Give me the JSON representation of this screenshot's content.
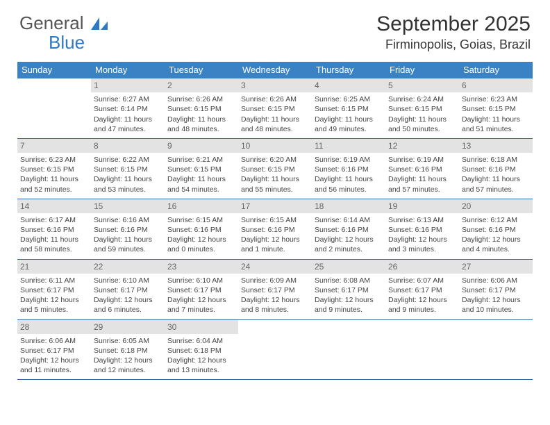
{
  "logo": {
    "word1": "General",
    "word2": "Blue"
  },
  "title": "September 2025",
  "location": "Firminopolis, Goias, Brazil",
  "colors": {
    "header_bg": "#3a82c4",
    "header_text": "#ffffff",
    "daynum_bg": "#e3e3e3",
    "daynum_text": "#666666",
    "body_text": "#444444",
    "rule": "#2f6aa8",
    "logo_blue": "#2f79c2"
  },
  "days_of_week": [
    "Sunday",
    "Monday",
    "Tuesday",
    "Wednesday",
    "Thursday",
    "Friday",
    "Saturday"
  ],
  "weeks": [
    [
      {
        "n": "",
        "sr": "",
        "ss": "",
        "dl": ""
      },
      {
        "n": "1",
        "sr": "Sunrise: 6:27 AM",
        "ss": "Sunset: 6:14 PM",
        "dl": "Daylight: 11 hours and 47 minutes."
      },
      {
        "n": "2",
        "sr": "Sunrise: 6:26 AM",
        "ss": "Sunset: 6:15 PM",
        "dl": "Daylight: 11 hours and 48 minutes."
      },
      {
        "n": "3",
        "sr": "Sunrise: 6:26 AM",
        "ss": "Sunset: 6:15 PM",
        "dl": "Daylight: 11 hours and 48 minutes."
      },
      {
        "n": "4",
        "sr": "Sunrise: 6:25 AM",
        "ss": "Sunset: 6:15 PM",
        "dl": "Daylight: 11 hours and 49 minutes."
      },
      {
        "n": "5",
        "sr": "Sunrise: 6:24 AM",
        "ss": "Sunset: 6:15 PM",
        "dl": "Daylight: 11 hours and 50 minutes."
      },
      {
        "n": "6",
        "sr": "Sunrise: 6:23 AM",
        "ss": "Sunset: 6:15 PM",
        "dl": "Daylight: 11 hours and 51 minutes."
      }
    ],
    [
      {
        "n": "7",
        "sr": "Sunrise: 6:23 AM",
        "ss": "Sunset: 6:15 PM",
        "dl": "Daylight: 11 hours and 52 minutes."
      },
      {
        "n": "8",
        "sr": "Sunrise: 6:22 AM",
        "ss": "Sunset: 6:15 PM",
        "dl": "Daylight: 11 hours and 53 minutes."
      },
      {
        "n": "9",
        "sr": "Sunrise: 6:21 AM",
        "ss": "Sunset: 6:15 PM",
        "dl": "Daylight: 11 hours and 54 minutes."
      },
      {
        "n": "10",
        "sr": "Sunrise: 6:20 AM",
        "ss": "Sunset: 6:15 PM",
        "dl": "Daylight: 11 hours and 55 minutes."
      },
      {
        "n": "11",
        "sr": "Sunrise: 6:19 AM",
        "ss": "Sunset: 6:16 PM",
        "dl": "Daylight: 11 hours and 56 minutes."
      },
      {
        "n": "12",
        "sr": "Sunrise: 6:19 AM",
        "ss": "Sunset: 6:16 PM",
        "dl": "Daylight: 11 hours and 57 minutes."
      },
      {
        "n": "13",
        "sr": "Sunrise: 6:18 AM",
        "ss": "Sunset: 6:16 PM",
        "dl": "Daylight: 11 hours and 57 minutes."
      }
    ],
    [
      {
        "n": "14",
        "sr": "Sunrise: 6:17 AM",
        "ss": "Sunset: 6:16 PM",
        "dl": "Daylight: 11 hours and 58 minutes."
      },
      {
        "n": "15",
        "sr": "Sunrise: 6:16 AM",
        "ss": "Sunset: 6:16 PM",
        "dl": "Daylight: 11 hours and 59 minutes."
      },
      {
        "n": "16",
        "sr": "Sunrise: 6:15 AM",
        "ss": "Sunset: 6:16 PM",
        "dl": "Daylight: 12 hours and 0 minutes."
      },
      {
        "n": "17",
        "sr": "Sunrise: 6:15 AM",
        "ss": "Sunset: 6:16 PM",
        "dl": "Daylight: 12 hours and 1 minute."
      },
      {
        "n": "18",
        "sr": "Sunrise: 6:14 AM",
        "ss": "Sunset: 6:16 PM",
        "dl": "Daylight: 12 hours and 2 minutes."
      },
      {
        "n": "19",
        "sr": "Sunrise: 6:13 AM",
        "ss": "Sunset: 6:16 PM",
        "dl": "Daylight: 12 hours and 3 minutes."
      },
      {
        "n": "20",
        "sr": "Sunrise: 6:12 AM",
        "ss": "Sunset: 6:16 PM",
        "dl": "Daylight: 12 hours and 4 minutes."
      }
    ],
    [
      {
        "n": "21",
        "sr": "Sunrise: 6:11 AM",
        "ss": "Sunset: 6:17 PM",
        "dl": "Daylight: 12 hours and 5 minutes."
      },
      {
        "n": "22",
        "sr": "Sunrise: 6:10 AM",
        "ss": "Sunset: 6:17 PM",
        "dl": "Daylight: 12 hours and 6 minutes."
      },
      {
        "n": "23",
        "sr": "Sunrise: 6:10 AM",
        "ss": "Sunset: 6:17 PM",
        "dl": "Daylight: 12 hours and 7 minutes."
      },
      {
        "n": "24",
        "sr": "Sunrise: 6:09 AM",
        "ss": "Sunset: 6:17 PM",
        "dl": "Daylight: 12 hours and 8 minutes."
      },
      {
        "n": "25",
        "sr": "Sunrise: 6:08 AM",
        "ss": "Sunset: 6:17 PM",
        "dl": "Daylight: 12 hours and 9 minutes."
      },
      {
        "n": "26",
        "sr": "Sunrise: 6:07 AM",
        "ss": "Sunset: 6:17 PM",
        "dl": "Daylight: 12 hours and 9 minutes."
      },
      {
        "n": "27",
        "sr": "Sunrise: 6:06 AM",
        "ss": "Sunset: 6:17 PM",
        "dl": "Daylight: 12 hours and 10 minutes."
      }
    ],
    [
      {
        "n": "28",
        "sr": "Sunrise: 6:06 AM",
        "ss": "Sunset: 6:17 PM",
        "dl": "Daylight: 12 hours and 11 minutes."
      },
      {
        "n": "29",
        "sr": "Sunrise: 6:05 AM",
        "ss": "Sunset: 6:18 PM",
        "dl": "Daylight: 12 hours and 12 minutes."
      },
      {
        "n": "30",
        "sr": "Sunrise: 6:04 AM",
        "ss": "Sunset: 6:18 PM",
        "dl": "Daylight: 12 hours and 13 minutes."
      },
      {
        "n": "",
        "sr": "",
        "ss": "",
        "dl": ""
      },
      {
        "n": "",
        "sr": "",
        "ss": "",
        "dl": ""
      },
      {
        "n": "",
        "sr": "",
        "ss": "",
        "dl": ""
      },
      {
        "n": "",
        "sr": "",
        "ss": "",
        "dl": ""
      }
    ]
  ]
}
